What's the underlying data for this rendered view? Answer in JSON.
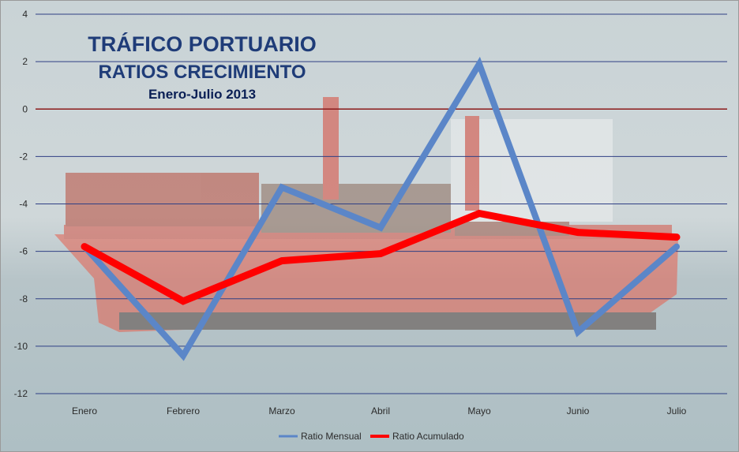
{
  "chart_data": {
    "type": "line",
    "title": "TRÁFICO PORTUARIO",
    "subtitle": "RATIOS CRECIMIENTO",
    "period": "Enero-Julio 2013",
    "xlabel": "",
    "ylabel": "",
    "categories": [
      "Enero",
      "Febrero",
      "Marzo",
      "Abril",
      "Mayo",
      "Junio",
      "Julio"
    ],
    "ylim": [
      -12,
      4
    ],
    "yticks": [
      "4",
      "2",
      "0",
      "-2",
      "-4",
      "-6",
      "-8",
      "-10",
      "-12"
    ],
    "grid": true,
    "legend_position": "bottom",
    "series": [
      {
        "name": "Ratio Mensual",
        "color": "#5b86c8",
        "values": [
          -5.8,
          -10.4,
          -3.3,
          -5.0,
          1.9,
          -9.4,
          -5.8
        ]
      },
      {
        "name": "Ratio Acumulado",
        "color": "#ff0000",
        "values": [
          -5.8,
          -8.1,
          -6.4,
          -6.1,
          -4.4,
          -5.2,
          -5.4
        ]
      }
    ]
  }
}
